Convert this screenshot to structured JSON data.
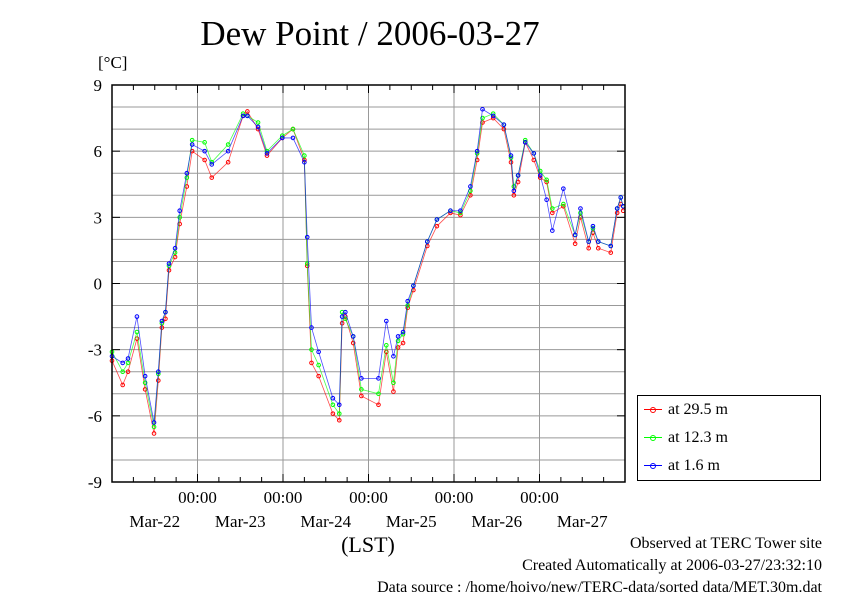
{
  "chart_data": {
    "type": "line",
    "title": "Dew Point / 2006-03-27",
    "ylabel": "[°C]",
    "xlabel": "(LST)",
    "ylim": [
      -9,
      9
    ],
    "yticks": [
      "9",
      "6",
      "3",
      "0",
      "-3",
      "-6",
      "-9"
    ],
    "ytick_values": [
      9,
      6,
      3,
      0,
      -3,
      -6,
      -9
    ],
    "xlim_hours_from_mar21_0000": [
      0,
      144
    ],
    "xticks_time": [
      "00:00",
      "00:00",
      "00:00",
      "00:00",
      "00:00"
    ],
    "xtick_hours": [
      24,
      48,
      72,
      96,
      120
    ],
    "xdate_labels": [
      "Mar-22",
      "Mar-23",
      "Mar-24",
      "Mar-25",
      "Mar-26",
      "Mar-27"
    ],
    "grid": true,
    "legend_placement": "right-outside",
    "x_hours": [
      0,
      3,
      4.5,
      7,
      9.3,
      11.8,
      13,
      14,
      15,
      16,
      17.7,
      19,
      21,
      22.5,
      26,
      28,
      32.6,
      36.8,
      38,
      41,
      43.5,
      47.8,
      50.8,
      54,
      54.8,
      56,
      58,
      62,
      63.8,
      64.6,
      65.5,
      67.7,
      70,
      74.8,
      77,
      79,
      80.3,
      81.7,
      83,
      84.6,
      88.5,
      91.2,
      95,
      97.8,
      100.6,
      102.5,
      104,
      107,
      110,
      112,
      112.8,
      114,
      116,
      118.4,
      120.2,
      122,
      123.6,
      126.7,
      130,
      131.5,
      133.8,
      135,
      136.5,
      140,
      141.8,
      142.8,
      143.5
    ],
    "series": [
      {
        "name": "at 29.5 m",
        "color": "#ff0000",
        "values": [
          -3.5,
          -4.6,
          -4.0,
          -2.5,
          -4.8,
          -6.8,
          -4.4,
          -2.0,
          -1.6,
          0.6,
          1.2,
          2.7,
          4.4,
          6.0,
          5.6,
          4.8,
          5.5,
          7.6,
          7.8,
          7.0,
          5.8,
          6.6,
          7.0,
          5.6,
          0.8,
          -3.6,
          -4.2,
          -5.9,
          -6.2,
          -1.8,
          -1.5,
          -2.7,
          -5.1,
          -5.5,
          -3.1,
          -4.9,
          -2.9,
          -2.7,
          -1.1,
          -0.3,
          1.7,
          2.6,
          3.2,
          3.1,
          4.0,
          5.6,
          7.3,
          7.5,
          7.0,
          5.5,
          4.0,
          4.6,
          6.4,
          5.6,
          4.8,
          4.6,
          3.2,
          3.5,
          1.8,
          3.0,
          1.6,
          2.3,
          1.6,
          1.4,
          3.2,
          3.6,
          3.3
        ]
      },
      {
        "name": "at 12.3 m",
        "color": "#00ff00",
        "values": [
          -3.1,
          -4.0,
          -3.6,
          -2.2,
          -4.5,
          -6.5,
          -4.1,
          -1.8,
          -1.3,
          0.8,
          1.4,
          3.0,
          4.8,
          6.5,
          6.4,
          5.5,
          6.3,
          7.7,
          7.6,
          7.3,
          6.0,
          6.7,
          7.0,
          5.8,
          0.9,
          -3.0,
          -3.7,
          -5.5,
          -5.9,
          -1.3,
          -1.6,
          -2.4,
          -4.8,
          -5.0,
          -2.8,
          -4.5,
          -2.6,
          -2.3,
          -1.0,
          -0.1,
          1.9,
          2.9,
          3.3,
          3.2,
          4.2,
          5.9,
          7.5,
          7.7,
          7.2,
          5.7,
          4.4,
          4.9,
          6.5,
          5.9,
          5.1,
          4.7,
          3.4,
          3.6,
          2.2,
          3.2,
          1.9,
          2.5,
          1.9,
          1.7,
          3.4,
          3.9,
          3.5
        ]
      },
      {
        "name": "at 1.6 m",
        "color": "#0000ff",
        "values": [
          -3.3,
          -3.6,
          -3.4,
          -1.5,
          -4.2,
          -6.3,
          -4.0,
          -1.7,
          -1.3,
          0.9,
          1.6,
          3.3,
          5.0,
          6.3,
          6.0,
          5.4,
          6.0,
          7.6,
          7.6,
          7.1,
          5.9,
          6.6,
          6.6,
          5.5,
          2.1,
          -2.0,
          -3.1,
          -5.2,
          -5.5,
          -1.5,
          -1.3,
          -2.4,
          -4.3,
          -4.3,
          -1.7,
          -3.3,
          -2.4,
          -2.2,
          -0.8,
          -0.1,
          1.9,
          2.9,
          3.3,
          3.3,
          4.4,
          6.0,
          7.9,
          7.6,
          7.2,
          5.8,
          4.2,
          4.9,
          6.4,
          5.9,
          4.9,
          3.8,
          2.4,
          4.3,
          2.2,
          3.4,
          1.9,
          2.6,
          1.9,
          1.7,
          3.4,
          3.9,
          3.5
        ]
      }
    ]
  },
  "footer": {
    "site": "Observed at TERC Tower site",
    "created": "Created Automatically at 2006-03-27/23:32:10",
    "source": "Data source : /home/hoivo/new/TERC-data/sorted  data/MET.30m.dat"
  }
}
